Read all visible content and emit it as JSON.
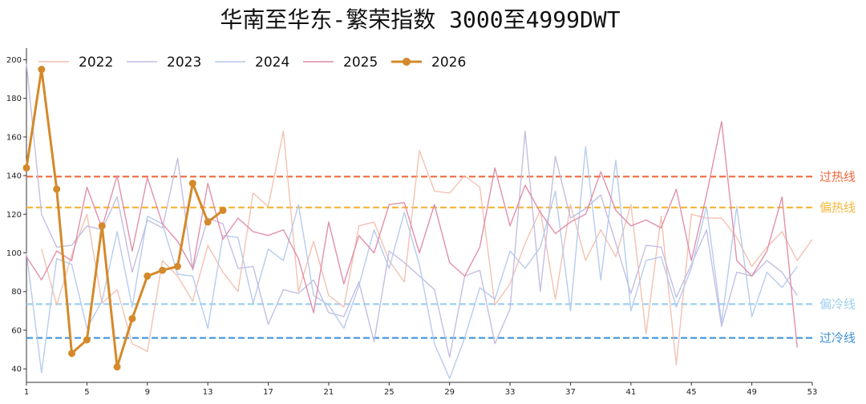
{
  "chart_data": {
    "type": "line",
    "title": "华南至华东-繁荣指数 3000至4999DWT",
    "xlabel": "",
    "ylabel": "",
    "xlim": [
      1,
      53
    ],
    "ylim": [
      33,
      206
    ],
    "x_ticks": [
      1,
      5,
      9,
      13,
      17,
      21,
      25,
      29,
      33,
      37,
      41,
      45,
      49,
      53
    ],
    "y_ticks": [
      40,
      60,
      80,
      100,
      120,
      140,
      160,
      180,
      200
    ],
    "grid": false,
    "legend_position": "top-left",
    "series": [
      {
        "name": "2022",
        "color": "#f2bfae",
        "x": [
          2,
          3,
          4,
          5,
          6,
          7,
          8,
          9,
          10,
          11,
          12,
          13,
          14,
          15,
          16,
          17,
          18,
          19,
          20,
          21,
          22,
          23,
          24,
          25,
          26,
          27,
          28,
          29,
          30,
          31,
          32,
          33,
          34,
          35,
          36,
          37,
          38,
          39,
          40,
          41,
          42,
          43,
          44,
          45,
          46,
          47,
          48,
          49,
          50,
          51,
          52,
          53
        ],
        "values": [
          102,
          73,
          99,
          120,
          74,
          81,
          53,
          49,
          96,
          88,
          75,
          104,
          90,
          80,
          131,
          124,
          163,
          80,
          106,
          78,
          72,
          114,
          116,
          96,
          85,
          153,
          132,
          131,
          140,
          134,
          73,
          84,
          105,
          122,
          76,
          125,
          96,
          112,
          98,
          125,
          58,
          119,
          42,
          120,
          118,
          118,
          108,
          93,
          103,
          111,
          96,
          107
        ]
      },
      {
        "name": "2023",
        "color": "#c2bbe2",
        "x": [
          1,
          2,
          3,
          4,
          5,
          6,
          7,
          8,
          9,
          10,
          11,
          12,
          13,
          14,
          15,
          16,
          17,
          18,
          19,
          20,
          21,
          22,
          23,
          24,
          25,
          26,
          27,
          28,
          29,
          30,
          31,
          32,
          33,
          34,
          35,
          36,
          37,
          38,
          39,
          40,
          41,
          42,
          43,
          44,
          45,
          46,
          47,
          48,
          49,
          50,
          51,
          52
        ],
        "values": [
          198,
          120,
          103,
          104,
          114,
          112,
          129,
          90,
          117,
          113,
          149,
          91,
          118,
          115,
          92,
          93,
          63,
          81,
          79,
          86,
          69,
          67,
          85,
          54,
          101,
          95,
          88,
          81,
          46,
          88,
          91,
          53,
          71,
          163,
          80,
          150,
          118,
          123,
          130,
          105,
          79,
          104,
          103,
          77,
          94,
          112,
          62,
          90,
          88,
          96,
          90,
          78
        ]
      },
      {
        "name": "2024",
        "color": "#b3c9ec",
        "x": [
          1,
          2,
          3,
          4,
          5,
          6,
          7,
          8,
          9,
          10,
          11,
          12,
          13,
          14,
          15,
          16,
          17,
          18,
          19,
          20,
          21,
          22,
          23,
          24,
          25,
          26,
          27,
          28,
          29,
          30,
          31,
          32,
          33,
          34,
          35,
          36,
          37,
          38,
          39,
          40,
          41,
          42,
          43,
          44,
          45,
          46,
          47,
          48,
          49,
          50,
          51,
          52
        ],
        "values": [
          100,
          38,
          97,
          94,
          61,
          75,
          111,
          72,
          119,
          115,
          89,
          88,
          61,
          109,
          108,
          74,
          102,
          96,
          125,
          78,
          73,
          61,
          83,
          112,
          92,
          121,
          94,
          53,
          35,
          56,
          82,
          76,
          101,
          92,
          103,
          132,
          70,
          155,
          86,
          148,
          70,
          96,
          98,
          72,
          92,
          124,
          64,
          124,
          67,
          90,
          82,
          93
        ]
      },
      {
        "name": "2025",
        "color": "#df8aa6",
        "x": [
          1,
          2,
          3,
          4,
          5,
          6,
          7,
          8,
          9,
          10,
          11,
          12,
          13,
          14,
          15,
          16,
          17,
          18,
          19,
          20,
          21,
          22,
          23,
          24,
          25,
          26,
          27,
          28,
          29,
          30,
          31,
          32,
          33,
          34,
          35,
          36,
          37,
          38,
          39,
          40,
          41,
          42,
          43,
          44,
          45,
          46,
          47,
          48,
          49,
          50,
          51,
          52
        ],
        "values": [
          98,
          86,
          101,
          96,
          134,
          113,
          140,
          101,
          139,
          115,
          106,
          92,
          136,
          107,
          118,
          111,
          109,
          112,
          97,
          69,
          116,
          84,
          109,
          100,
          125,
          126,
          100,
          125,
          95,
          88,
          103,
          144,
          114,
          135,
          121,
          110,
          116,
          120,
          142,
          122,
          114,
          117,
          113,
          133,
          96,
          130,
          168,
          96,
          88,
          101,
          129,
          51
        ]
      },
      {
        "name": "2026",
        "color": "#d4892a",
        "x": [
          1,
          2,
          3,
          4,
          5,
          6,
          7,
          8,
          9,
          10,
          11,
          12,
          13,
          14
        ],
        "values": [
          144,
          195,
          133,
          48,
          55,
          114,
          41,
          66,
          88,
          91,
          93,
          136,
          116,
          122
        ]
      }
    ],
    "reference_lines": [
      {
        "label": "过热线",
        "value": 139.5,
        "color": "#ee6a3d"
      },
      {
        "label": "偏热线",
        "value": 123.5,
        "color": "#f5b83f"
      },
      {
        "label": "偏冷线",
        "value": 73.5,
        "color": "#9dd1ee"
      },
      {
        "label": "过冷线",
        "value": 56,
        "color": "#3f93d8"
      }
    ]
  }
}
